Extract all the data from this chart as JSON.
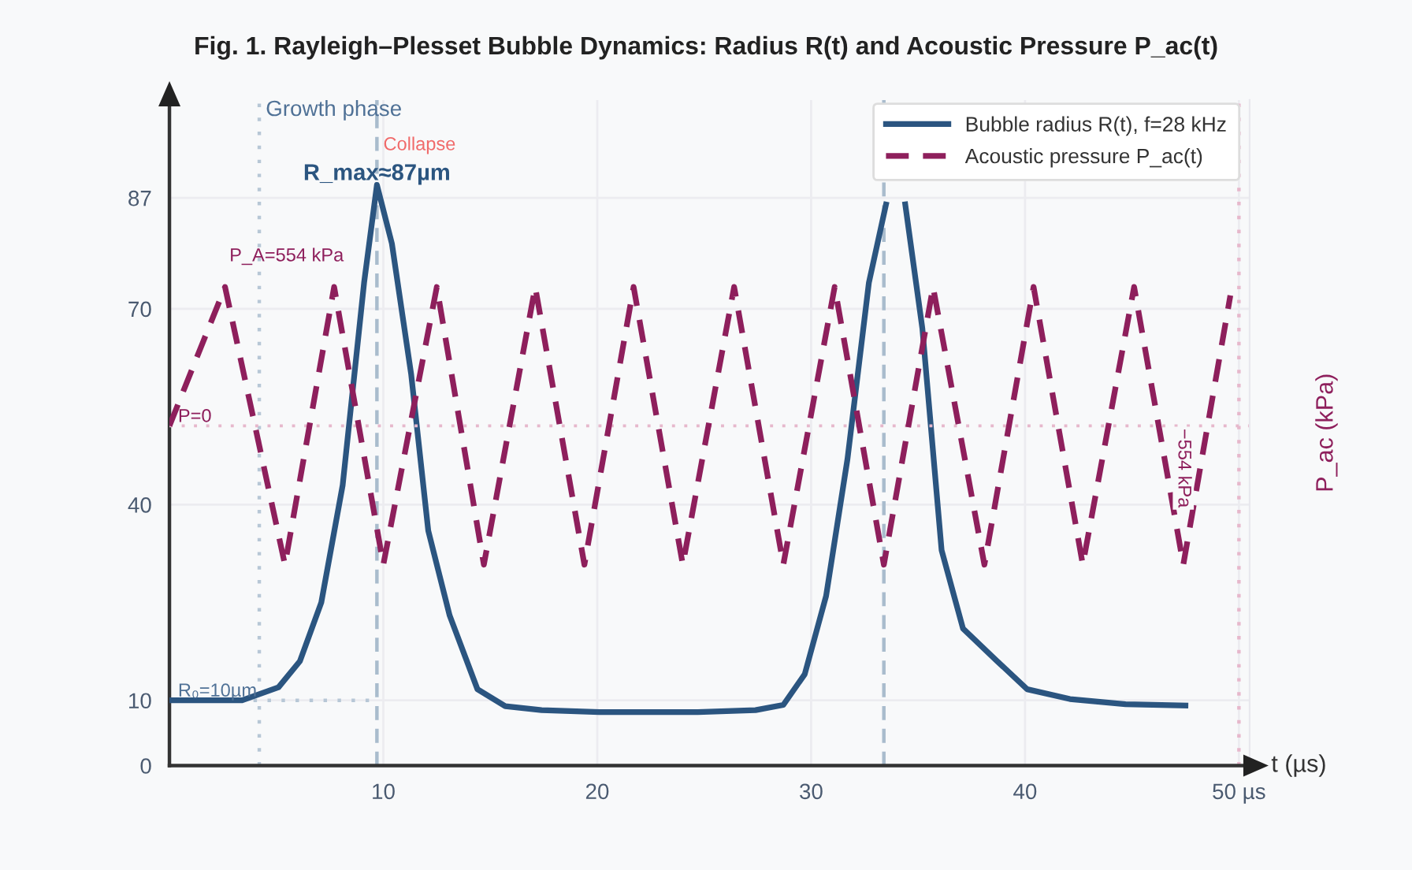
{
  "chart_data": {
    "type": "line",
    "title": "Fig. 1. Rayleigh–Plesset Bubble Dynamics: Radius R(t) and Acoustic Pressure P_ac(t)",
    "xlabel": "t (µs)",
    "y2label": "P_ac (kPa)",
    "xlim": [
      0,
      50.5
    ],
    "xticks": [
      10,
      20,
      30,
      {
        "value": 50,
        "label": "50 µs"
      },
      40
    ],
    "ylim": [
      0,
      102
    ],
    "yticks": [
      0,
      10,
      40,
      70,
      87
    ],
    "y2lim": [
      -1356,
      1300
    ],
    "grid": true,
    "legend": "top right",
    "series": [
      {
        "name": "Bubble radius R(t), f=28 kHz",
        "color": "#2b5580",
        "line_style": "solid",
        "x": [
          0,
          3.4,
          5.1,
          6.1,
          7.1,
          8.1,
          9.1,
          9.7,
          10.4,
          11.3,
          12.1,
          13.1,
          14.4,
          15.7,
          17.4,
          20.1,
          24.7,
          27.4,
          28.7,
          29.7,
          30.7,
          31.7,
          32.7,
          33.5,
          33.9,
          34.4,
          35.2,
          36.1,
          37.1,
          38.7,
          40.1,
          42.1,
          44.7,
          47.5
        ],
        "values": [
          10,
          10,
          12,
          16,
          25,
          43,
          74,
          89,
          80,
          60,
          36,
          23,
          11.7,
          9.1,
          8.5,
          8.2,
          8.2,
          8.5,
          9.3,
          14,
          26,
          47,
          74,
          86,
          null,
          86,
          67,
          33,
          21,
          16,
          11.7,
          10.2,
          9.4,
          9.2
        ]
      },
      {
        "name": "Acoustic pressure P_ac(t)",
        "color": "#8e1f5c",
        "line_style": "dashed",
        "axis": "y2",
        "x": [
          0,
          2.6,
          5.4,
          7.7,
          10.0,
          12.5,
          14.7,
          17.1,
          19.4,
          21.7,
          24.0,
          26.4,
          28.7,
          31.1,
          33.4,
          35.7,
          38.1,
          40.4,
          42.7,
          45.1,
          47.4,
          49.6
        ],
        "values": [
          0,
          554,
          -554,
          554,
          -554,
          554,
          -554,
          554,
          -554,
          554,
          -554,
          554,
          -554,
          554,
          -554,
          554,
          -554,
          554,
          -554,
          554,
          -554,
          520
        ],
        "value_labels": [
          null,
          "P_A=554 kPa",
          null,
          null,
          null,
          null,
          null,
          null,
          null,
          null,
          null,
          null,
          null,
          null,
          null,
          null,
          null,
          null,
          null,
          null,
          "−554 kPa",
          null
        ]
      }
    ],
    "ref_lines": [
      {
        "axis": "x",
        "value": 4.2,
        "label": "Growth phase",
        "color": "#b7c7d6",
        "line_style": "dotted"
      },
      {
        "axis": "x",
        "value": 9.7,
        "label": "Collapse",
        "color": "#a9bccd",
        "line_style": "dashed"
      },
      {
        "axis": "x",
        "value": 33.4,
        "color": "#a9bccd",
        "line_style": "dashed"
      },
      {
        "axis": "x",
        "value": 50,
        "color": "#e6b8cc",
        "line_style": "dotted"
      },
      {
        "axis": "y2",
        "value": 0,
        "label": "P=0",
        "color": "#e6b8cc",
        "line_style": "dotted"
      },
      {
        "axis": "y",
        "value": 10,
        "label": "R₀=10µm",
        "color": "#b7c7d6",
        "line_style": "dotted"
      }
    ],
    "annotations": [
      {
        "text": "R_max≈87µm",
        "x": 9.7,
        "y": 89
      }
    ]
  }
}
